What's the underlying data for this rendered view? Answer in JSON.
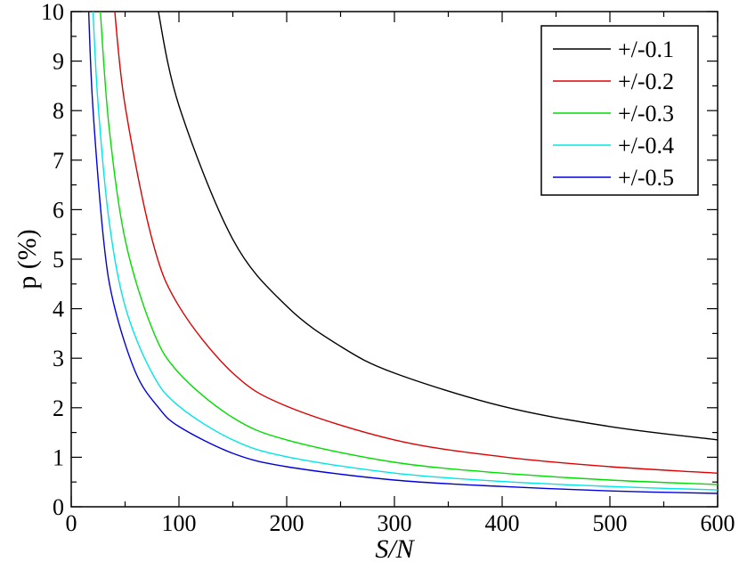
{
  "chart_data": {
    "type": "line",
    "xlabel": "S/N",
    "ylabel": "p (%)",
    "xlim": [
      0,
      600
    ],
    "ylim": [
      0,
      10
    ],
    "xticks": [
      "0",
      "100",
      "200",
      "300",
      "400",
      "500",
      "600"
    ],
    "yticks": [
      "0",
      "1",
      "2",
      "3",
      "4",
      "5",
      "6",
      "7",
      "8",
      "9",
      "10"
    ],
    "grid": false,
    "legend_position": "top-right",
    "series": [
      {
        "name": "+/-0.1",
        "color": "#000000",
        "x": [
          80,
          100,
          150,
          200,
          250,
          300,
          400,
          500,
          600
        ],
        "y": [
          10.1,
          8.1,
          5.4,
          4.05,
          3.24,
          2.7,
          2.03,
          1.62,
          1.35
        ]
      },
      {
        "name": "+/-0.2",
        "color": "#dd0000",
        "x": [
          40,
          50,
          75,
          100,
          150,
          200,
          300,
          400,
          500,
          600
        ],
        "y": [
          10.1,
          8.1,
          5.4,
          4.05,
          2.7,
          2.03,
          1.35,
          1.01,
          0.81,
          0.68
        ]
      },
      {
        "name": "+/-0.3",
        "color": "#00dd00",
        "x": [
          27,
          35,
          50,
          75,
          100,
          150,
          200,
          300,
          400,
          500,
          600
        ],
        "y": [
          10.0,
          7.7,
          5.4,
          3.6,
          2.7,
          1.8,
          1.35,
          0.9,
          0.68,
          0.54,
          0.45
        ]
      },
      {
        "name": "+/-0.4",
        "color": "#00e5e5",
        "x": [
          20,
          25,
          35,
          50,
          75,
          100,
          150,
          200,
          300,
          400,
          500,
          600
        ],
        "y": [
          10.1,
          8.1,
          5.8,
          4.05,
          2.7,
          2.03,
          1.35,
          1.01,
          0.68,
          0.51,
          0.41,
          0.34
        ]
      },
      {
        "name": "+/-0.5",
        "color": "#0000dd",
        "x": [
          16,
          20,
          30,
          40,
          60,
          80,
          100,
          150,
          200,
          300,
          400,
          500,
          600
        ],
        "y": [
          10.1,
          8.1,
          5.4,
          4.05,
          2.7,
          2.03,
          1.62,
          1.08,
          0.81,
          0.54,
          0.41,
          0.32,
          0.27
        ]
      }
    ]
  }
}
